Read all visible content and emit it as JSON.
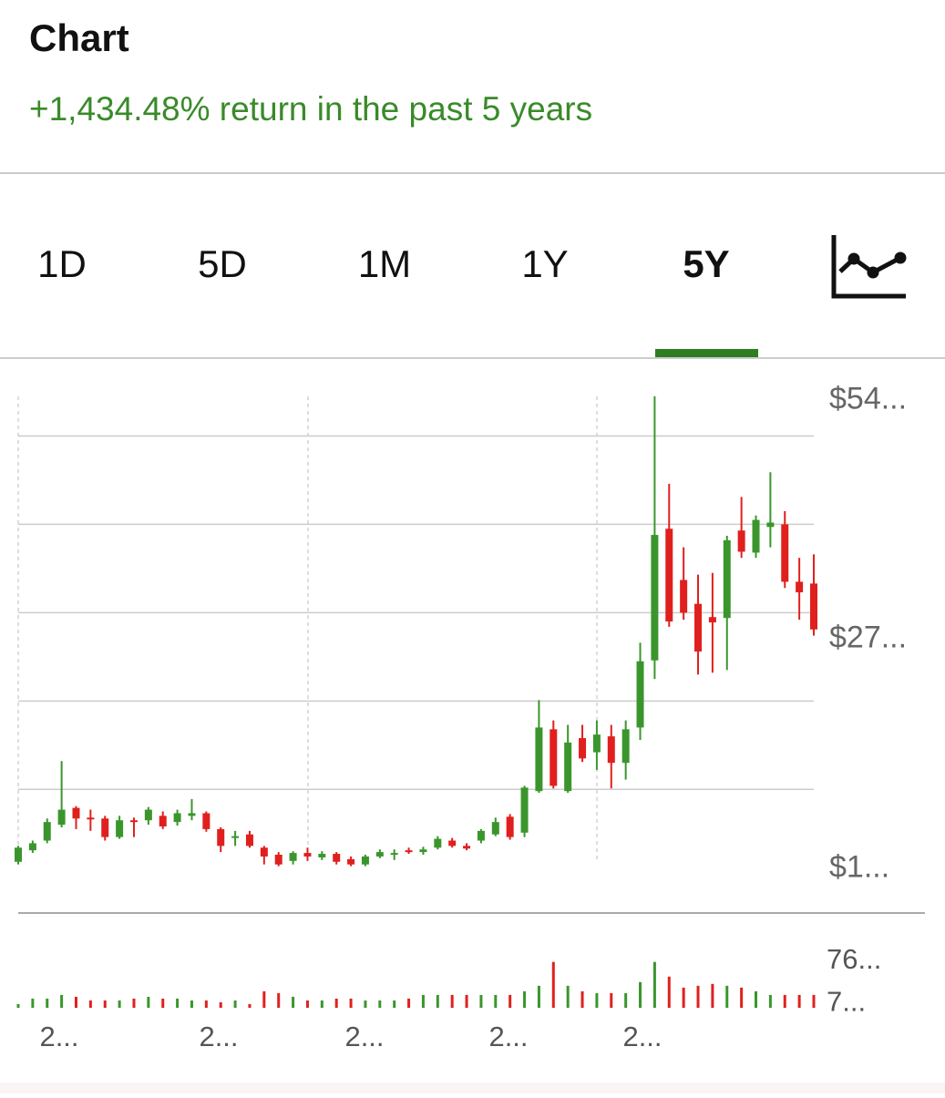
{
  "header": {
    "title": "Chart",
    "subtitle": "+1,434.48% return in the past 5 years"
  },
  "tabs": [
    "1D",
    "5D",
    "1M",
    "1Y",
    "5Y"
  ],
  "selected_tab": 4,
  "chart_data": {
    "type": "candlestick",
    "up_color": "#3a962c",
    "down_color": "#e0201e",
    "open": [
      1.8,
      3.1,
      4.2,
      6.0,
      7.9,
      6.8,
      6.7,
      4.6,
      6.5,
      6.5,
      7.0,
      6.3,
      7.0,
      7.3,
      5.5,
      4.6,
      4.9,
      3.4,
      2.6,
      1.9,
      2.8,
      2.3,
      2.7,
      2.1,
      1.5,
      2.4,
      2.7,
      3.1,
      2.9,
      3.4,
      4.2,
      3.6,
      4.2,
      4.9,
      6.9,
      5.1,
      9.8,
      16.8,
      9.8,
      15.8,
      14.2,
      16.0,
      13.0,
      17.0,
      24.6,
      39.5,
      33.7,
      31.0,
      29.5,
      29.4,
      39.3,
      36.8,
      39.7,
      40.0,
      33.5,
      33.3
    ],
    "high": [
      3.6,
      4.2,
      6.7,
      13.2,
      8.1,
      7.7,
      7.0,
      7.0,
      6.8,
      8.0,
      7.5,
      7.7,
      8.9,
      7.5,
      5.7,
      5.3,
      5.3,
      3.6,
      2.9,
      3.0,
      3.4,
      3.0,
      2.9,
      2.4,
      2.6,
      3.2,
      3.2,
      3.4,
      3.5,
      4.7,
      4.5,
      3.9,
      5.5,
      6.8,
      7.2,
      10.4,
      20.1,
      17.8,
      17.3,
      17.3,
      17.8,
      17.3,
      17.8,
      26.6,
      54.5,
      44.6,
      37.4,
      34.3,
      34.5,
      38.7,
      43.1,
      41.0,
      45.9,
      41.5,
      36.2,
      36.6
    ],
    "low": [
      1.5,
      2.8,
      3.9,
      5.7,
      5.5,
      5.3,
      4.2,
      4.4,
      4.6,
      6.0,
      5.5,
      5.9,
      6.5,
      5.2,
      2.9,
      3.6,
      3.4,
      1.5,
      1.3,
      1.5,
      1.9,
      2.0,
      1.5,
      1.3,
      1.3,
      2.2,
      2.0,
      2.7,
      2.6,
      3.2,
      3.4,
      3.1,
      3.9,
      4.7,
      4.3,
      4.6,
      9.6,
      10.1,
      9.6,
      13.1,
      12.2,
      10.1,
      11.1,
      15.6,
      22.5,
      28.4,
      29.2,
      23.0,
      23.2,
      23.5,
      36.2,
      36.2,
      37.4,
      32.8,
      29.2,
      27.4
    ],
    "close": [
      3.4,
      3.9,
      6.3,
      7.7,
      6.7,
      6.6,
      4.6,
      6.5,
      6.3,
      7.7,
      5.8,
      7.3,
      7.3,
      5.5,
      3.6,
      4.7,
      3.6,
      2.4,
      1.5,
      2.8,
      2.4,
      2.7,
      1.8,
      1.5,
      2.4,
      2.9,
      2.8,
      2.9,
      3.2,
      4.4,
      3.6,
      3.3,
      5.3,
      6.3,
      4.6,
      10.2,
      17.0,
      10.4,
      15.3,
      13.5,
      16.2,
      13.0,
      16.8,
      24.5,
      38.8,
      29.0,
      30.0,
      25.6,
      28.9,
      38.2,
      36.9,
      40.5,
      40.2,
      33.5,
      32.3,
      28.1
    ],
    "ylim": [
      -4,
      55
    ],
    "yticks": [
      {
        "value": 54,
        "label": "$54..."
      },
      {
        "value": 27,
        "label": "$27..."
      },
      {
        "value": 1,
        "label": "$1..."
      }
    ],
    "ygrid": [
      10,
      20,
      30,
      40,
      50
    ],
    "volume": [
      6,
      15,
      15,
      21,
      18,
      12,
      12,
      12,
      15,
      18,
      15,
      15,
      12,
      12,
      9,
      12,
      6,
      27,
      24,
      18,
      12,
      12,
      15,
      15,
      12,
      12,
      12,
      15,
      21,
      21,
      21,
      21,
      21,
      21,
      21,
      27,
      36,
      75,
      36,
      27,
      24,
      24,
      24,
      42,
      75,
      51,
      33,
      36,
      39,
      36,
      33,
      27,
      21,
      21,
      21,
      21
    ],
    "volume_lim": [
      0,
      76
    ],
    "volume_ticks": [
      {
        "value": 76,
        "label": "76..."
      },
      {
        "value": 7,
        "label": "7..."
      }
    ],
    "x_labels": [
      "2...",
      "2...",
      "2...",
      "2...",
      "2..."
    ]
  }
}
